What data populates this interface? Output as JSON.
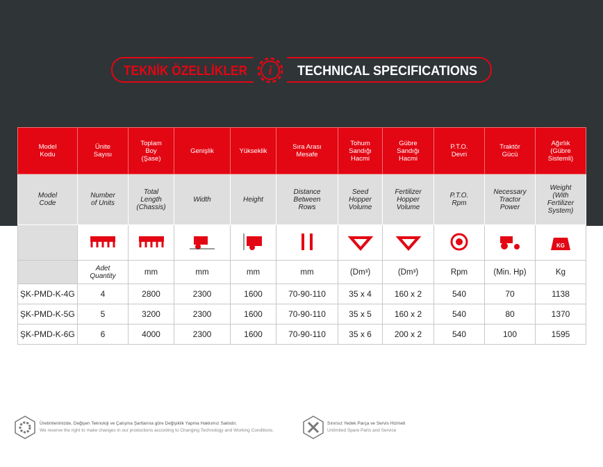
{
  "header": {
    "title_tr": "TEKNİK ÖZELLİKLER",
    "title_en": "TECHNICAL SPECIFICATIONS",
    "icon_letter": "i"
  },
  "table": {
    "header_tr": [
      "Model\nKodu",
      "Ünite\nSayısı",
      "Toplam\nBoy\n(Şase)",
      "Genişlik",
      "Yükseklik",
      "Sıra Arası\nMesafe",
      "Tohum\nSandığı\nHacmi",
      "Gübre\nSandığı\nHacmi",
      "P.T.O.\nDevri",
      "Traktör\nGücü",
      "Ağırlık\n(Gübre\nSistemli)"
    ],
    "header_en": [
      "Model\nCode",
      "Number\nof Units",
      "Total\nLength\n(Chassis)",
      "Width",
      "Height",
      "Distance\nBetween\nRows",
      "Seed\nHopper\nVolume",
      "Fertilizer\nHopper\nVolume",
      "P.T.O.\nRpm",
      "Necessary\nTractor\nPower",
      "Weight\n(With\nFertilizer\nSystem)"
    ],
    "units": [
      "Adet\nQuantity",
      "mm",
      "mm",
      "mm",
      "mm",
      "(Dm³)",
      "(Dm³)",
      "Rpm",
      "(Min. Hp)",
      "Kg"
    ],
    "icon_labels": [
      "KG"
    ],
    "rows": [
      [
        "ŞK-PMD-K-4G",
        "4",
        "2800",
        "2300",
        "1600",
        "70-90-110",
        "35 x 4",
        "160 x 2",
        "540",
        "70",
        "1138"
      ],
      [
        "ŞK-PMD-K-5G",
        "5",
        "3200",
        "2300",
        "1600",
        "70-90-110",
        "35 x 5",
        "160 x 2",
        "540",
        "80",
        "1370"
      ],
      [
        "ŞK-PMD-K-6G",
        "6",
        "4000",
        "2300",
        "1600",
        "70-90-110",
        "35 x 6",
        "200 x 2",
        "540",
        "100",
        "1595"
      ]
    ]
  },
  "footer": {
    "notes": [
      {
        "tr": "Üretimlerimizde, Değişen Teknoloji ve Çalışma Şartlarına göre Değişiklik Yapma Hakkımız Saklıdır.",
        "en": "We reserve the right to make changes in our productions according to Changing Technology and Working Conditions."
      },
      {
        "tr": "Sınırsız Yedek Parça ve Servis Hizmeti",
        "en": "Unlimited Spare Parts and Service"
      }
    ]
  }
}
